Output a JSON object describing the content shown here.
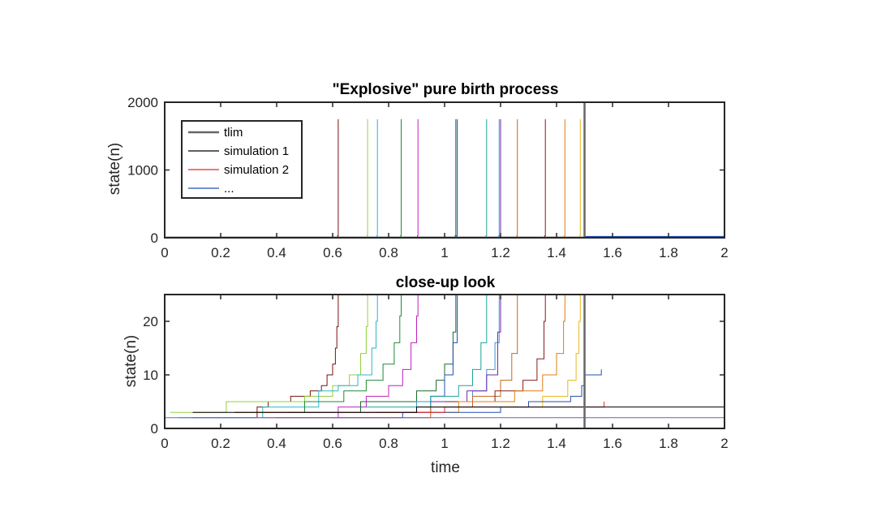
{
  "figure": {
    "background": "#ffffff"
  },
  "chart_data": [
    {
      "type": "line",
      "title": "\"Explosive\" pure birth process",
      "xlabel": "",
      "ylabel": "state(n)",
      "xlim": [
        0,
        2
      ],
      "ylim": [
        0,
        2000
      ],
      "xticks": [
        "0",
        "0.2",
        "0.4",
        "0.6",
        "0.8",
        "1",
        "1.2",
        "1.4",
        "1.6",
        "1.8",
        "2"
      ],
      "yticks": [
        "0",
        "1000",
        "2000"
      ],
      "tlim": 1.5,
      "tlim_color": "#666666",
      "legend": {
        "placement": "top-left",
        "entries": [
          {
            "label": "tlim",
            "color": "#666666"
          },
          {
            "label": "simulation 1",
            "color": "#000000"
          },
          {
            "label": "simulation 2",
            "color": "#e8262a"
          },
          {
            "label": "...",
            "color": "#1f4fb4"
          }
        ]
      },
      "series": [
        {
          "color": "#7a1111",
          "explode_time": 0.62,
          "peak": 1750
        },
        {
          "color": "#8fd13a",
          "explode_time": 0.725,
          "peak": 1750
        },
        {
          "color": "#2bb6c8",
          "explode_time": 0.76,
          "peak": 1750
        },
        {
          "color": "#1f8a36",
          "explode_time": 0.845,
          "peak": 1750
        },
        {
          "color": "#c01fc0",
          "explode_time": 0.905,
          "peak": 1750
        },
        {
          "color": "#1a6b2a",
          "explode_time": 1.04,
          "peak": 1750
        },
        {
          "color": "#1f4fb4",
          "explode_time": 1.045,
          "peak": 1750
        },
        {
          "color": "#1aa59a",
          "explode_time": 1.15,
          "peak": 1750
        },
        {
          "color": "#3e96d8",
          "explode_time": 1.195,
          "peak": 1750
        },
        {
          "color": "#6b2ab8",
          "explode_time": 1.2,
          "peak": 1750
        },
        {
          "color": "#c8641a",
          "explode_time": 1.26,
          "peak": 1750
        },
        {
          "color": "#8b1a1a",
          "explode_time": 1.36,
          "peak": 1750
        },
        {
          "color": "#e07d10",
          "explode_time": 1.43,
          "peak": 1750
        },
        {
          "color": "#e8b81a",
          "explode_time": 1.485,
          "peak": 1750
        }
      ]
    },
    {
      "type": "line",
      "title": "close-up look",
      "xlabel": "time",
      "ylabel": "state(n)",
      "xlim": [
        0,
        2
      ],
      "ylim": [
        0,
        25
      ],
      "xticks": [
        "0",
        "0.2",
        "0.4",
        "0.6",
        "0.8",
        "1",
        "1.2",
        "1.4",
        "1.6",
        "1.8",
        "2"
      ],
      "yticks": [
        "0",
        "10",
        "20"
      ],
      "tlim": 1.5,
      "tlim_color": "#666666",
      "series": [
        {
          "color": "#7a1111",
          "points": [
            [
              0.1,
              2
            ],
            [
              0.33,
              4
            ],
            [
              0.37,
              5
            ],
            [
              0.45,
              6
            ],
            [
              0.52,
              7
            ],
            [
              0.56,
              8
            ],
            [
              0.58,
              10
            ],
            [
              0.6,
              12
            ],
            [
              0.61,
              15
            ],
            [
              0.615,
              19
            ],
            [
              0.62,
              25
            ]
          ]
        },
        {
          "color": "#8fd13a",
          "points": [
            [
              0.02,
              3
            ],
            [
              0.22,
              5
            ],
            [
              0.5,
              6
            ],
            [
              0.6,
              8
            ],
            [
              0.66,
              10
            ],
            [
              0.7,
              14
            ],
            [
              0.72,
              19
            ],
            [
              0.725,
              25
            ]
          ]
        },
        {
          "color": "#2bb6c8",
          "points": [
            [
              0.05,
              2
            ],
            [
              0.35,
              4
            ],
            [
              0.55,
              7
            ],
            [
              0.62,
              8
            ],
            [
              0.69,
              10
            ],
            [
              0.74,
              15
            ],
            [
              0.755,
              20
            ],
            [
              0.76,
              25
            ]
          ]
        },
        {
          "color": "#1f8a36",
          "points": [
            [
              0.25,
              3
            ],
            [
              0.5,
              5
            ],
            [
              0.64,
              7
            ],
            [
              0.72,
              9
            ],
            [
              0.78,
              12
            ],
            [
              0.82,
              16
            ],
            [
              0.84,
              21
            ],
            [
              0.845,
              25
            ]
          ]
        },
        {
          "color": "#c01fc0",
          "points": [
            [
              0.35,
              2
            ],
            [
              0.62,
              4
            ],
            [
              0.72,
              6
            ],
            [
              0.8,
              8
            ],
            [
              0.85,
              11
            ],
            [
              0.88,
              16
            ],
            [
              0.9,
              21
            ],
            [
              0.905,
              25
            ]
          ]
        },
        {
          "color": "#1a6b2a",
          "points": [
            [
              0.44,
              3
            ],
            [
              0.7,
              5
            ],
            [
              0.9,
              7
            ],
            [
              0.97,
              9
            ],
            [
              1.0,
              12
            ],
            [
              1.03,
              18
            ],
            [
              1.04,
              25
            ]
          ]
        },
        {
          "color": "#1f4fb4",
          "points": [
            [
              0.6,
              2
            ],
            [
              0.85,
              3
            ],
            [
              0.95,
              6
            ],
            [
              1.0,
              10
            ],
            [
              1.03,
              16
            ],
            [
              1.045,
              25
            ]
          ]
        },
        {
          "color": "#1aa59a",
          "points": [
            [
              0.72,
              4
            ],
            [
              0.95,
              6
            ],
            [
              1.05,
              8
            ],
            [
              1.1,
              11
            ],
            [
              1.13,
              16
            ],
            [
              1.15,
              25
            ]
          ]
        },
        {
          "color": "#3e96d8",
          "points": [
            [
              0.5,
              3
            ],
            [
              0.9,
              5
            ],
            [
              1.1,
              7
            ],
            [
              1.15,
              11
            ],
            [
              1.18,
              16
            ],
            [
              1.195,
              25
            ]
          ]
        },
        {
          "color": "#6b2ab8",
          "points": [
            [
              0.95,
              5
            ],
            [
              1.08,
              7
            ],
            [
              1.15,
              10
            ],
            [
              1.19,
              18
            ],
            [
              1.2,
              25
            ]
          ]
        },
        {
          "color": "#c8641a",
          "points": [
            [
              0.4,
              2
            ],
            [
              0.95,
              4
            ],
            [
              1.1,
              6
            ],
            [
              1.2,
              9
            ],
            [
              1.24,
              14
            ],
            [
              1.26,
              25
            ]
          ]
        },
        {
          "color": "#8b1a1a",
          "points": [
            [
              1.0,
              5
            ],
            [
              1.18,
              7
            ],
            [
              1.28,
              9
            ],
            [
              1.33,
              13
            ],
            [
              1.355,
              20
            ],
            [
              1.36,
              25
            ]
          ]
        },
        {
          "color": "#e07d10",
          "points": [
            [
              0.75,
              3
            ],
            [
              1.05,
              5
            ],
            [
              1.25,
              7
            ],
            [
              1.35,
              10
            ],
            [
              1.4,
              14
            ],
            [
              1.425,
              20
            ],
            [
              1.43,
              25
            ]
          ]
        },
        {
          "color": "#e8b81a",
          "points": [
            [
              1.2,
              4
            ],
            [
              1.35,
              6
            ],
            [
              1.44,
              9
            ],
            [
              1.47,
              14
            ],
            [
              1.48,
              20
            ],
            [
              1.485,
              25
            ]
          ]
        },
        {
          "color": "#1f4fb4",
          "points": [
            [
              0.85,
              3
            ],
            [
              1.2,
              4
            ],
            [
              1.3,
              5
            ],
            [
              1.45,
              6
            ],
            [
              1.49,
              8
            ],
            [
              1.5,
              10
            ],
            [
              1.56,
              11
            ]
          ]
        },
        {
          "color": "#e8262a",
          "points": [
            [
              0.25,
              3
            ],
            [
              0.9,
              3
            ],
            [
              1.0,
              4
            ],
            [
              1.57,
              4
            ],
            [
              1.57,
              5
            ]
          ]
        },
        {
          "color": "#000000",
          "points": [
            [
              0.1,
              3
            ],
            [
              0.5,
              3
            ],
            [
              0.9,
              4
            ],
            [
              2.0,
              4
            ]
          ]
        },
        {
          "color": "#6a5acd",
          "points": [
            [
              0.0,
              2
            ],
            [
              2.0,
              2
            ]
          ]
        }
      ]
    }
  ]
}
